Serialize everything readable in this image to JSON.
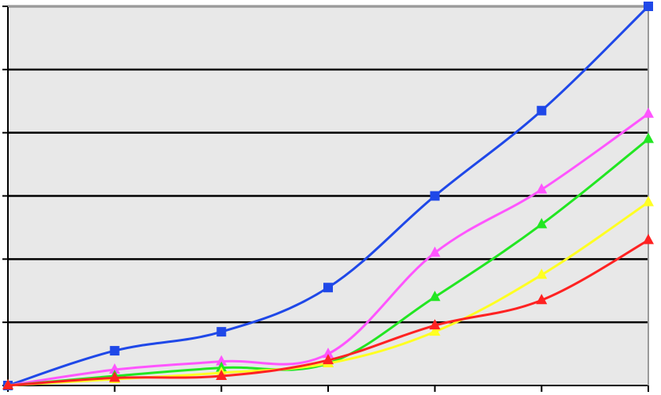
{
  "chart_data": {
    "type": "line",
    "x": [
      0,
      1,
      2,
      3,
      4,
      5,
      6
    ],
    "ylim": [
      0,
      6
    ],
    "grid": true,
    "colors": {
      "plot_background": "#e8e8e8",
      "gridline": "#000000",
      "axis": "#000000"
    },
    "series": [
      {
        "color": "#1f48e8",
        "marker": "square",
        "values": [
          0,
          0.55,
          0.85,
          1.55,
          3.0,
          4.35,
          6.0
        ]
      },
      {
        "color": "#ff55ff",
        "marker": "triangle",
        "values": [
          0,
          0.25,
          0.38,
          0.5,
          2.1,
          3.1,
          4.3
        ]
      },
      {
        "color": "#22e622",
        "marker": "triangle",
        "values": [
          0,
          0.15,
          0.28,
          0.35,
          1.4,
          2.55,
          3.9
        ]
      },
      {
        "color": "#ffff22",
        "marker": "triangle",
        "values": [
          0,
          0.1,
          0.2,
          0.35,
          0.85,
          1.75,
          2.9
        ]
      },
      {
        "color": "#ff2222",
        "marker": "triangle",
        "values": [
          0,
          0.12,
          0.15,
          0.4,
          0.95,
          1.35,
          2.3
        ]
      }
    ]
  }
}
